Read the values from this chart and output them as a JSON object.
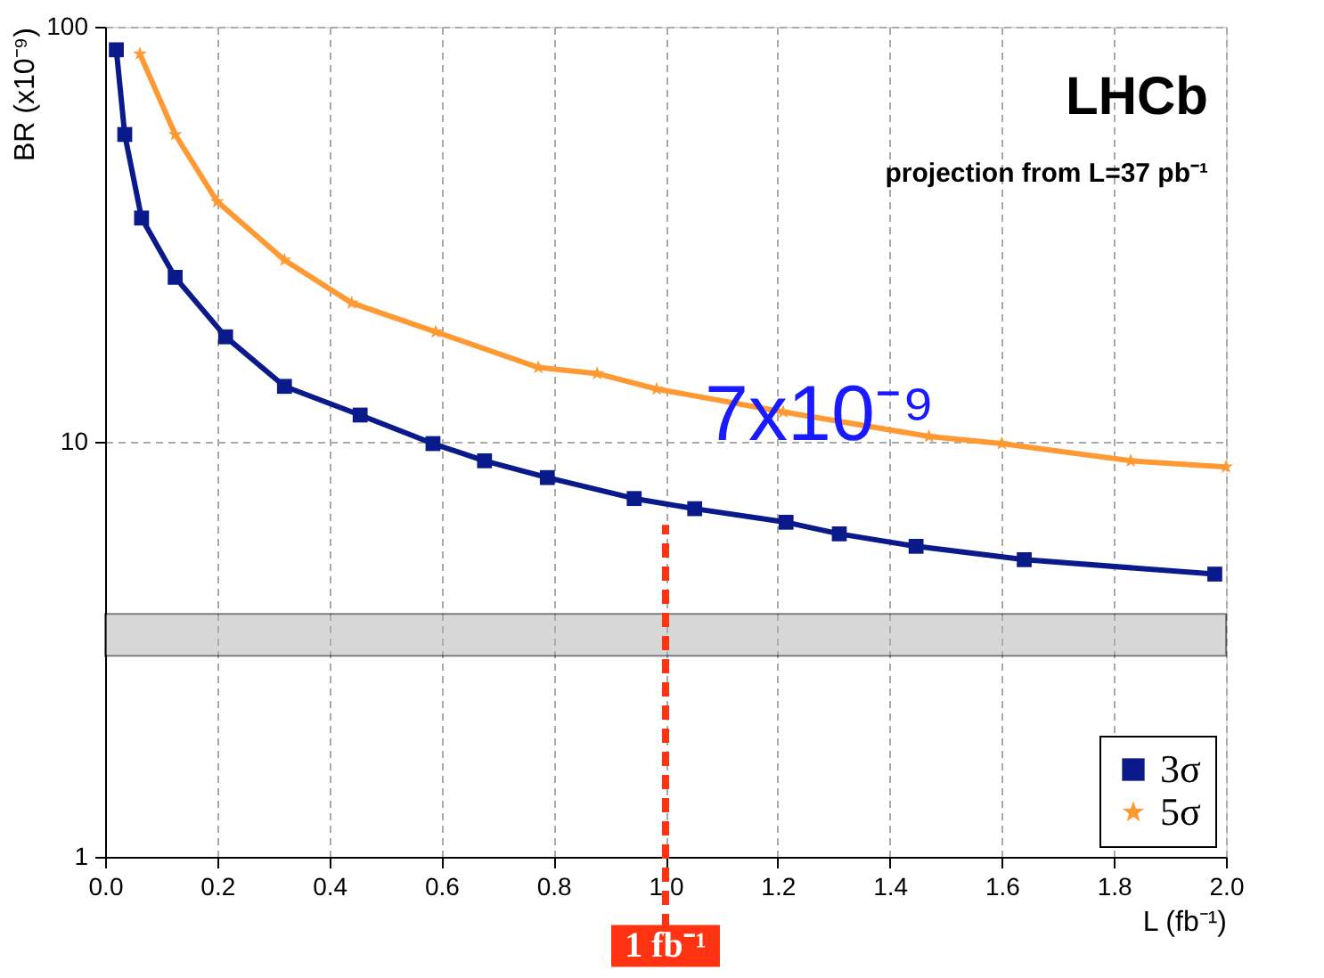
{
  "chart_data": {
    "type": "line",
    "xlabel": "L (fb⁻¹)",
    "ylabel": "BR (x10⁻⁹)",
    "series": [
      {
        "name": "3σ",
        "color": "#0a1a8a",
        "marker": "square",
        "x": [
          0.02,
          0.035,
          0.065,
          0.125,
          0.215,
          0.32,
          0.455,
          0.585,
          0.677,
          0.789,
          0.944,
          1.052,
          1.215,
          1.31,
          1.447,
          1.64,
          1.98
        ],
        "values": [
          88,
          55,
          34.6,
          24.9,
          17.9,
          13.6,
          11.6,
          9.9,
          9.0,
          8.2,
          7.3,
          6.9,
          6.4,
          6.0,
          5.6,
          5.2,
          4.8
        ]
      },
      {
        "name": "5σ",
        "color": "#ff9933",
        "marker": "star",
        "x": [
          0.062,
          0.125,
          0.2,
          0.32,
          0.44,
          0.59,
          0.773,
          0.878,
          0.984,
          1.21,
          1.47,
          1.6,
          1.83,
          2.0
        ],
        "values": [
          86,
          55,
          37.9,
          27.4,
          21.6,
          18.4,
          15.1,
          14.6,
          13.4,
          11.8,
          10.3,
          9.9,
          9.0,
          8.7
        ]
      }
    ],
    "log": "y",
    "xlim": [
      0,
      2
    ],
    "ylim": [
      1,
      100
    ],
    "xticks": [
      {
        "value": 0,
        "label": "0.0"
      },
      0.2,
      0.4,
      0.6,
      0.8,
      {
        "value": 1,
        "label": "1.0"
      },
      1.2,
      1.4,
      1.6,
      1.8,
      {
        "value": 2,
        "label": "2.0"
      }
    ],
    "yticks": [
      1,
      10,
      100
    ],
    "grid": true,
    "legend": "bottom right",
    "bands": [
      {
        "axis": "y",
        "from": 3.05,
        "to": 3.85,
        "color": "#b0b0b0"
      }
    ],
    "ref_lines": [
      {
        "axis": "x",
        "value": 1.0,
        "label": "1 fb⁻¹",
        "color": "#ff3311",
        "line_style": "dashed"
      }
    ],
    "annotations": [
      "LHCb",
      "projection from L=37 pb⁻¹",
      "7x10⁻⁹"
    ]
  }
}
